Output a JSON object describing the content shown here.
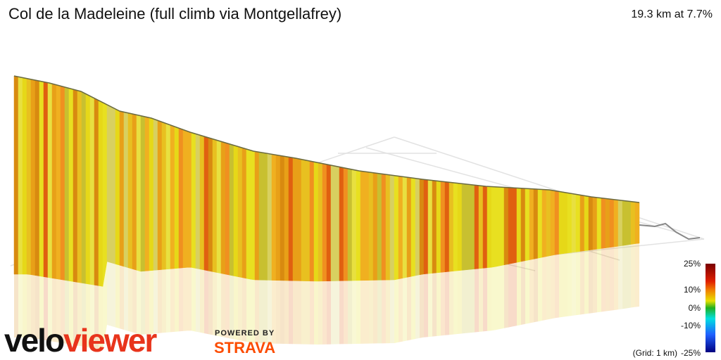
{
  "header": {
    "title": "Col de la Madeleine (full climb via Montgellafrey)",
    "stats": "19.3 km at 7.7%"
  },
  "legend": {
    "labels": [
      "25%",
      "10%",
      "0%",
      "-10%",
      "-25%"
    ],
    "grid_note": "(Grid: 1 km)"
  },
  "branding": {
    "logo_left": "velo",
    "logo_right": "viewer",
    "powered_by": "POWERED BY",
    "partner": "STRAVA"
  }
}
